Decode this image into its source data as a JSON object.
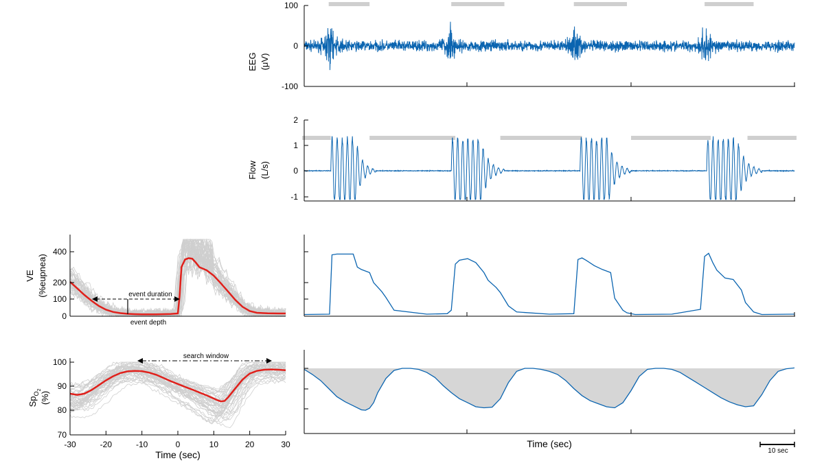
{
  "colors": {
    "trace": "#0a64b0",
    "avg": "#e0201b",
    "grey": "#cfcfcf",
    "fill": "#d6d6d6",
    "axis": "#000000"
  },
  "chart_data": [
    {
      "type": "line",
      "ylabel_line1": "EEG",
      "ylabel_line2": "(μV)",
      "yticks": [
        "100",
        "0",
        "-100"
      ],
      "ylim": [
        -100,
        100
      ],
      "window_x": [
        0,
        120
      ],
      "sleep_bars": [
        [
          6,
          16
        ],
        [
          36,
          49
        ],
        [
          66,
          79
        ],
        [
          98,
          110
        ]
      ],
      "burst_times": [
        6,
        35.5,
        66,
        98
      ],
      "grid": false
    },
    {
      "type": "line",
      "ylabel_line1": "Flow",
      "ylabel_line2": "(L/s)",
      "yticks": [
        "2",
        "1",
        "0",
        "-1"
      ],
      "ylim": [
        -1.1,
        2
      ],
      "window_x": [
        0,
        120
      ],
      "sleep_bars": [
        [
          -0.5,
          6.5
        ],
        [
          16,
          37
        ],
        [
          48,
          68
        ],
        [
          80,
          99.5
        ],
        [
          108.5,
          120.5
        ]
      ],
      "breath_bursts": [
        [
          6.5,
          17.5
        ],
        [
          36,
          49
        ],
        [
          67.5,
          80
        ],
        [
          98.5,
          112
        ]
      ],
      "grid": false
    },
    {
      "type": "line",
      "ylabel_line1": "VE",
      "ylabel_line2": "(%eupnea)",
      "yticks": [
        "400",
        "200",
        "100",
        "0"
      ],
      "ylim": [
        0,
        480
      ],
      "xlim": [
        -30,
        30
      ],
      "average": {
        "x": [
          -30,
          -28,
          -26,
          -24,
          -22,
          -20,
          -18,
          -16,
          -14,
          -12,
          -10,
          -8,
          -6,
          -4,
          -2,
          0,
          0.5,
          1,
          2,
          3,
          4,
          5,
          6,
          8,
          10,
          12,
          14,
          16,
          18,
          20,
          22,
          25,
          28,
          30
        ],
        "y": [
          205,
          165,
          125,
          90,
          60,
          38,
          25,
          18,
          14,
          12,
          11,
          11,
          11,
          12,
          13,
          16,
          120,
          300,
          350,
          358,
          355,
          330,
          300,
          280,
          245,
          195,
          145,
          95,
          55,
          30,
          20,
          17,
          16,
          16
        ]
      },
      "annotations": {
        "duration": "event duration",
        "depth": "event depth"
      },
      "grid": false
    },
    {
      "type": "line",
      "ylabel_main": "Sp",
      "ylabel_sub": "O",
      "ylabel_subsub": "2",
      "ylabel_line2": "(%)",
      "yticks": [
        "100",
        "90",
        "80",
        "70"
      ],
      "ylim": [
        70,
        101
      ],
      "xlim": [
        -30,
        30
      ],
      "xticks": [
        "-30",
        "-20",
        "-10",
        "0",
        "10",
        "20",
        "30"
      ],
      "xlabel": "Time (sec)",
      "average": {
        "x": [
          -30,
          -28,
          -26,
          -24,
          -22,
          -20,
          -18,
          -16,
          -14,
          -12,
          -10,
          -8,
          -6,
          -4,
          -2,
          0,
          2,
          4,
          6,
          8,
          10,
          11,
          12,
          13,
          14,
          16,
          18,
          20,
          22,
          24,
          26,
          28,
          30
        ],
        "y": [
          87,
          86.5,
          87,
          88.5,
          90.5,
          92.5,
          94.2,
          95.5,
          96.2,
          96.4,
          96.3,
          95.7,
          94.8,
          93.5,
          92.2,
          91,
          89.8,
          88.7,
          87.5,
          86.3,
          85,
          84.3,
          83.8,
          84,
          85.5,
          89.2,
          92.8,
          95.3,
          96.4,
          96.9,
          97,
          96.9,
          96.7
        ]
      },
      "annotations": {
        "search": "search window"
      },
      "grid": false
    },
    {
      "type": "line",
      "series_note": "VE time course",
      "window_x": [
        0,
        120
      ],
      "points": {
        "x": [
          0,
          6.2,
          6.8,
          8,
          12,
          13,
          14,
          16,
          17,
          19,
          20,
          22,
          30,
          35,
          36,
          37,
          38,
          40,
          42,
          44,
          45,
          47,
          48,
          50,
          52,
          60,
          66,
          67,
          68,
          69,
          71,
          73,
          75,
          76,
          78,
          79,
          81,
          90,
          97,
          98,
          99,
          100,
          101,
          103,
          105,
          107,
          108,
          110,
          112,
          120
        ],
        "y": [
          10,
          12,
          380,
          385,
          385,
          300,
          285,
          265,
          200,
          145,
          110,
          35,
          12,
          15,
          35,
          320,
          345,
          355,
          330,
          265,
          215,
          170,
          140,
          60,
          25,
          12,
          15,
          350,
          360,
          345,
          310,
          285,
          265,
          105,
          35,
          20,
          10,
          12,
          40,
          370,
          390,
          330,
          280,
          230,
          220,
          155,
          80,
          25,
          10,
          12
        ]
      },
      "ylim": [
        0,
        480
      ]
    },
    {
      "type": "area",
      "series_note": "SpO2 time course",
      "window_x": [
        0,
        120
      ],
      "baseline": 97,
      "points": {
        "x": [
          0,
          2,
          4,
          6,
          8,
          10,
          12,
          14,
          15,
          16,
          17,
          18,
          20,
          22,
          24,
          26,
          28,
          30,
          32,
          34,
          36,
          38,
          40,
          42,
          44,
          46,
          48,
          50,
          52,
          54,
          56,
          58,
          60,
          62,
          64,
          66,
          68,
          70,
          72,
          74,
          76,
          78,
          80,
          82,
          84,
          86,
          88,
          90,
          92,
          94,
          96,
          98,
          100,
          102,
          104,
          106,
          108,
          110,
          112,
          114,
          116,
          118,
          120
        ],
        "y": [
          96.5,
          94,
          91,
          87,
          83,
          80.5,
          78.5,
          76.5,
          76.3,
          77.3,
          80,
          85,
          92,
          96,
          97,
          97,
          96.5,
          95,
          92.5,
          88.5,
          85,
          82,
          80,
          78,
          77.5,
          77.8,
          82,
          90,
          95.5,
          97,
          97,
          96.5,
          95.5,
          94,
          91,
          87,
          83.5,
          81,
          79.5,
          78,
          77.5,
          80,
          86,
          93,
          96.5,
          97,
          97,
          96.5,
          95,
          92.5,
          90,
          87.5,
          85,
          82.5,
          80.5,
          79,
          78,
          78.5,
          84,
          91,
          95.5,
          96.8,
          97.2
        ]
      },
      "ylim": [
        70,
        101
      ],
      "xlabel": "Time (sec)"
    }
  ],
  "scale_bar": {
    "label": "10 sec",
    "seconds": 10
  }
}
